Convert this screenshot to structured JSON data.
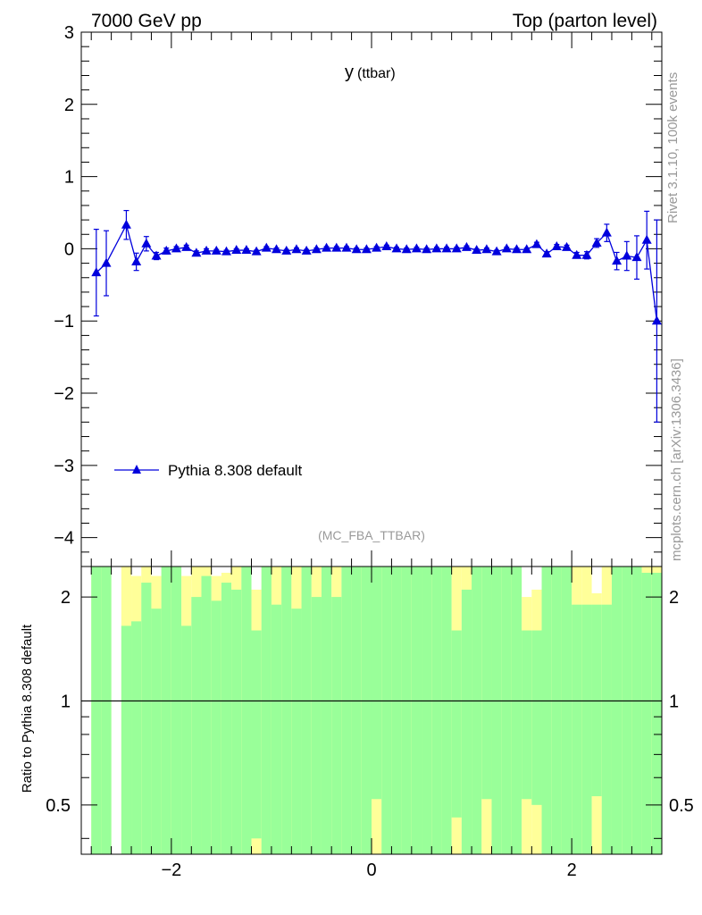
{
  "header": {
    "left": "7000 GeV pp",
    "right": "Top (parton level)"
  },
  "side": {
    "rivet": "Rivet 3.1.10,  100k events",
    "mcplots": "mcplots.cern.ch [arXiv:1306.3436]"
  },
  "colors": {
    "series": "#0000dd",
    "band_inner": "#99ff99",
    "band_outer": "#ffff99",
    "axis": "#000000",
    "watermark": "#999999"
  },
  "chart_data": [
    {
      "type": "line",
      "title": "y",
      "title_sub": "(ttbar)",
      "analysis_label": "(MC_FBA_TTBAR)",
      "xlim": [
        -2.9,
        2.9
      ],
      "ylim": [
        -4.4,
        3.0
      ],
      "yticks": [
        -4,
        -3,
        -2,
        -1,
        0,
        1,
        2,
        3
      ],
      "ytick_labels": [
        "−4",
        "−3",
        "−2",
        "−1",
        "0",
        "1",
        "2",
        "3"
      ],
      "legend_placement": "bottom-left",
      "series": [
        {
          "name": "Pythia 8.308 default",
          "marker": "triangle",
          "x": [
            -2.75,
            -2.65,
            -2.45,
            -2.35,
            -2.25,
            -2.15,
            -2.05,
            -1.95,
            -1.85,
            -1.75,
            -1.65,
            -1.55,
            -1.45,
            -1.35,
            -1.25,
            -1.15,
            -1.05,
            -0.95,
            -0.85,
            -0.75,
            -0.65,
            -0.55,
            -0.45,
            -0.35,
            -0.25,
            -0.15,
            -0.05,
            0.05,
            0.15,
            0.25,
            0.35,
            0.45,
            0.55,
            0.65,
            0.75,
            0.85,
            0.95,
            1.05,
            1.15,
            1.25,
            1.35,
            1.45,
            1.55,
            1.65,
            1.75,
            1.85,
            1.95,
            2.05,
            2.15,
            2.25,
            2.35,
            2.45,
            2.55,
            2.65,
            2.75,
            2.85
          ],
          "y": [
            -0.33,
            -0.2,
            0.33,
            -0.18,
            0.07,
            -0.1,
            -0.03,
            0.0,
            0.02,
            -0.06,
            -0.03,
            -0.03,
            -0.04,
            -0.02,
            -0.02,
            -0.04,
            0.01,
            -0.01,
            -0.03,
            -0.01,
            -0.03,
            -0.01,
            0.01,
            0.01,
            0.01,
            -0.01,
            -0.01,
            0.01,
            0.03,
            0.0,
            -0.01,
            0.0,
            -0.01,
            0.0,
            0.0,
            0.0,
            0.02,
            -0.02,
            -0.01,
            -0.04,
            0.0,
            -0.01,
            -0.01,
            0.06,
            -0.07,
            0.03,
            0.02,
            -0.09,
            -0.09,
            0.08,
            0.22,
            -0.17,
            -0.1,
            -0.12,
            0.12,
            -1.0
          ],
          "yerr": [
            0.6,
            0.45,
            0.2,
            0.12,
            0.1,
            0.05,
            0.04,
            0.03,
            0.03,
            0.03,
            0.03,
            0.02,
            0.02,
            0.02,
            0.02,
            0.02,
            0.02,
            0.02,
            0.02,
            0.02,
            0.02,
            0.02,
            0.02,
            0.02,
            0.02,
            0.02,
            0.02,
            0.02,
            0.02,
            0.02,
            0.02,
            0.02,
            0.02,
            0.02,
            0.02,
            0.02,
            0.02,
            0.02,
            0.02,
            0.02,
            0.02,
            0.02,
            0.02,
            0.03,
            0.03,
            0.03,
            0.03,
            0.04,
            0.05,
            0.06,
            0.12,
            0.12,
            0.2,
            0.3,
            0.4,
            1.4
          ]
        }
      ]
    },
    {
      "type": "bar",
      "ylabel": "Ratio to Pythia 8.308 default",
      "xlim": [
        -2.9,
        2.9
      ],
      "ylim": [
        0.36,
        2.45
      ],
      "y_scale": "log",
      "yticks": [
        0.5,
        1,
        2
      ],
      "ytick_labels": [
        "0.5",
        "1",
        "2"
      ],
      "xticks": [
        -2,
        0,
        2
      ],
      "xtick_labels": [
        "−2",
        "0",
        "2"
      ],
      "reference_line": 1,
      "bands": [
        {
          "x": -2.75,
          "inner": [
            0.36,
            2.45
          ],
          "outer": [
            0.36,
            2.45
          ]
        },
        {
          "x": -2.65,
          "inner": [
            0.36,
            2.45
          ],
          "outer": [
            0.36,
            2.45
          ]
        },
        {
          "x": -2.45,
          "inner": [
            0.36,
            1.65
          ],
          "outer": [
            0.36,
            2.45
          ]
        },
        {
          "x": -2.35,
          "inner": [
            0.36,
            1.7
          ],
          "outer": [
            0.36,
            2.3
          ]
        },
        {
          "x": -2.25,
          "inner": [
            0.36,
            2.2
          ],
          "outer": [
            0.36,
            2.45
          ]
        },
        {
          "x": -2.15,
          "inner": [
            0.36,
            1.85
          ],
          "outer": [
            0.36,
            2.3
          ]
        },
        {
          "x": -2.05,
          "inner": [
            0.36,
            2.45
          ],
          "outer": [
            0.36,
            2.45
          ]
        },
        {
          "x": -1.95,
          "inner": [
            0.36,
            2.45
          ],
          "outer": [
            0.36,
            2.45
          ]
        },
        {
          "x": -1.85,
          "inner": [
            0.36,
            1.65
          ],
          "outer": [
            0.36,
            2.3
          ]
        },
        {
          "x": -1.75,
          "inner": [
            0.36,
            2.0
          ],
          "outer": [
            0.36,
            2.45
          ]
        },
        {
          "x": -1.65,
          "inner": [
            0.36,
            2.3
          ],
          "outer": [
            0.36,
            2.45
          ]
        },
        {
          "x": -1.55,
          "inner": [
            0.36,
            1.95
          ],
          "outer": [
            0.36,
            2.3
          ]
        },
        {
          "x": -1.45,
          "inner": [
            0.36,
            2.2
          ],
          "outer": [
            0.36,
            2.35
          ]
        },
        {
          "x": -1.35,
          "inner": [
            0.36,
            2.1
          ],
          "outer": [
            0.36,
            2.45
          ]
        },
        {
          "x": -1.25,
          "inner": [
            0.36,
            2.45
          ],
          "outer": [
            0.36,
            2.45
          ]
        },
        {
          "x": -1.15,
          "inner": [
            0.4,
            1.6
          ],
          "outer": [
            0.36,
            2.1
          ]
        },
        {
          "x": -1.05,
          "inner": [
            0.36,
            2.45
          ],
          "outer": [
            0.36,
            2.45
          ]
        },
        {
          "x": -0.95,
          "inner": [
            0.36,
            1.9
          ],
          "outer": [
            0.36,
            2.45
          ]
        },
        {
          "x": -0.85,
          "inner": [
            0.36,
            2.45
          ],
          "outer": [
            0.36,
            2.45
          ]
        },
        {
          "x": -0.75,
          "inner": [
            0.36,
            1.85
          ],
          "outer": [
            0.36,
            2.45
          ]
        },
        {
          "x": -0.65,
          "inner": [
            0.36,
            2.45
          ],
          "outer": [
            0.36,
            2.45
          ]
        },
        {
          "x": -0.55,
          "inner": [
            0.36,
            2.0
          ],
          "outer": [
            0.36,
            2.45
          ]
        },
        {
          "x": -0.45,
          "inner": [
            0.36,
            2.45
          ],
          "outer": [
            0.36,
            2.45
          ]
        },
        {
          "x": -0.35,
          "inner": [
            0.36,
            2.0
          ],
          "outer": [
            0.36,
            2.45
          ]
        },
        {
          "x": -0.25,
          "inner": [
            0.36,
            2.45
          ],
          "outer": [
            0.36,
            2.45
          ]
        },
        {
          "x": -0.15,
          "inner": [
            0.36,
            2.45
          ],
          "outer": [
            0.36,
            2.45
          ]
        },
        {
          "x": -0.05,
          "inner": [
            0.36,
            2.45
          ],
          "outer": [
            0.36,
            2.45
          ]
        },
        {
          "x": 0.05,
          "inner": [
            0.52,
            2.45
          ],
          "outer": [
            0.36,
            2.45
          ]
        },
        {
          "x": 0.15,
          "inner": [
            0.36,
            2.45
          ],
          "outer": [
            0.36,
            2.45
          ]
        },
        {
          "x": 0.25,
          "inner": [
            0.36,
            2.45
          ],
          "outer": [
            0.36,
            2.45
          ]
        },
        {
          "x": 0.35,
          "inner": [
            0.36,
            2.45
          ],
          "outer": [
            0.36,
            2.45
          ]
        },
        {
          "x": 0.45,
          "inner": [
            0.36,
            2.45
          ],
          "outer": [
            0.36,
            2.45
          ]
        },
        {
          "x": 0.55,
          "inner": [
            0.36,
            2.45
          ],
          "outer": [
            0.36,
            2.45
          ]
        },
        {
          "x": 0.65,
          "inner": [
            0.36,
            2.45
          ],
          "outer": [
            0.36,
            2.45
          ]
        },
        {
          "x": 0.75,
          "inner": [
            0.36,
            2.45
          ],
          "outer": [
            0.36,
            2.45
          ]
        },
        {
          "x": 0.85,
          "inner": [
            0.46,
            1.6
          ],
          "outer": [
            0.36,
            2.45
          ]
        },
        {
          "x": 0.95,
          "inner": [
            0.36,
            2.1
          ],
          "outer": [
            0.36,
            2.45
          ]
        },
        {
          "x": 1.05,
          "inner": [
            0.36,
            2.45
          ],
          "outer": [
            0.36,
            2.45
          ]
        },
        {
          "x": 1.15,
          "inner": [
            0.52,
            2.45
          ],
          "outer": [
            0.36,
            2.45
          ]
        },
        {
          "x": 1.25,
          "inner": [
            0.36,
            2.45
          ],
          "outer": [
            0.36,
            2.45
          ]
        },
        {
          "x": 1.35,
          "inner": [
            0.36,
            2.45
          ],
          "outer": [
            0.36,
            2.45
          ]
        },
        {
          "x": 1.45,
          "inner": [
            0.36,
            2.45
          ],
          "outer": [
            0.36,
            2.45
          ]
        },
        {
          "x": 1.55,
          "inner": [
            0.52,
            1.6
          ],
          "outer": [
            0.36,
            2.0
          ]
        },
        {
          "x": 1.65,
          "inner": [
            0.5,
            1.6
          ],
          "outer": [
            0.36,
            2.1
          ]
        },
        {
          "x": 1.75,
          "inner": [
            0.36,
            2.45
          ],
          "outer": [
            0.36,
            2.45
          ]
        },
        {
          "x": 1.85,
          "inner": [
            0.36,
            2.45
          ],
          "outer": [
            0.36,
            2.45
          ]
        },
        {
          "x": 1.95,
          "inner": [
            0.36,
            2.45
          ],
          "outer": [
            0.36,
            2.45
          ]
        },
        {
          "x": 2.05,
          "inner": [
            0.36,
            1.9
          ],
          "outer": [
            0.36,
            2.45
          ]
        },
        {
          "x": 2.15,
          "inner": [
            0.36,
            1.9
          ],
          "outer": [
            0.36,
            2.45
          ]
        },
        {
          "x": 2.25,
          "inner": [
            0.53,
            1.9
          ],
          "outer": [
            0.36,
            2.05
          ]
        },
        {
          "x": 2.35,
          "inner": [
            0.36,
            1.9
          ],
          "outer": [
            0.36,
            2.45
          ]
        },
        {
          "x": 2.45,
          "inner": [
            0.36,
            2.45
          ],
          "outer": [
            0.36,
            2.45
          ]
        },
        {
          "x": 2.55,
          "inner": [
            0.36,
            2.45
          ],
          "outer": [
            0.36,
            2.45
          ]
        },
        {
          "x": 2.65,
          "inner": [
            0.36,
            2.45
          ],
          "outer": [
            0.36,
            2.45
          ]
        },
        {
          "x": 2.75,
          "inner": [
            0.36,
            2.35
          ],
          "outer": [
            0.36,
            2.45
          ]
        },
        {
          "x": 2.85,
          "inner": [
            0.36,
            2.35
          ],
          "outer": [
            0.36,
            2.45
          ]
        }
      ]
    }
  ]
}
